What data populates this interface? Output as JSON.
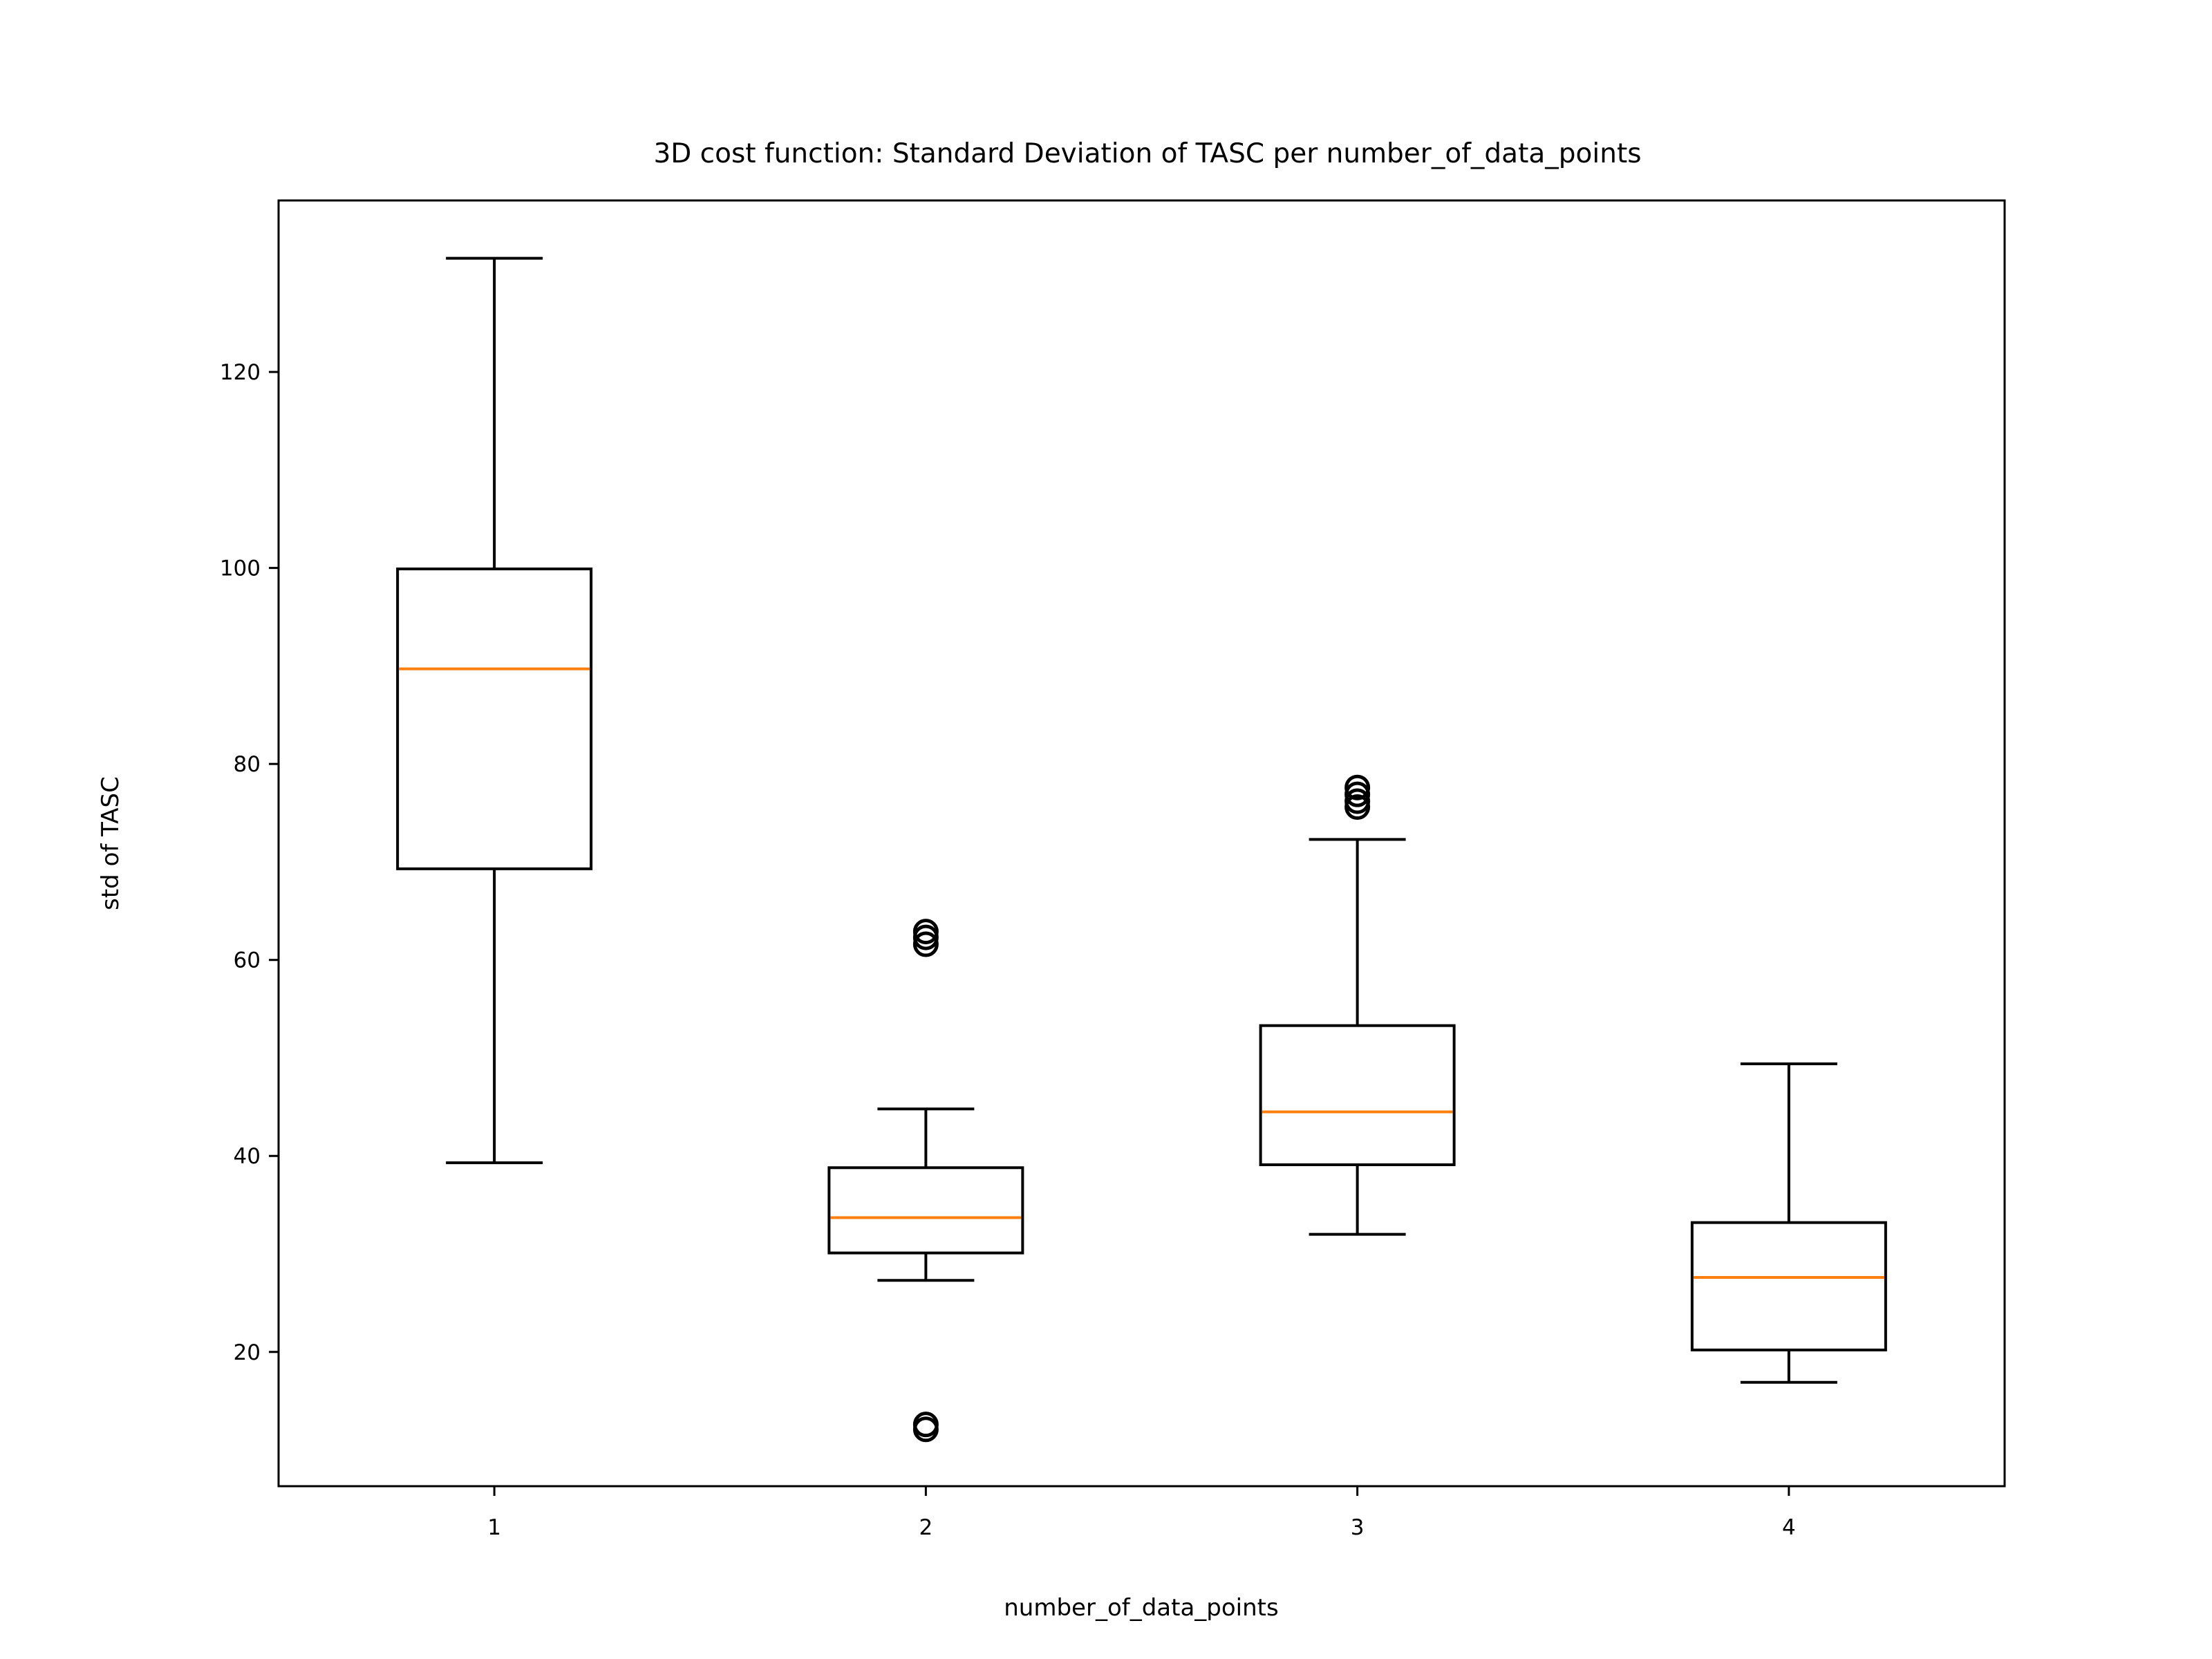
{
  "chart_data": {
    "type": "box",
    "title": "3D cost function: Standard Deviation of TASC per number_of_data_points",
    "xlabel": "number_of_data_points",
    "ylabel": "std of TASC",
    "categories": [
      "1",
      "2",
      "3",
      "4"
    ],
    "ylim": [
      6.3,
      137.5
    ],
    "yticks": [
      20,
      40,
      60,
      80,
      100,
      120
    ],
    "grid": false,
    "colors": {
      "box": "#000000",
      "median": "#ff7f0e"
    },
    "boxes": [
      {
        "category": "1",
        "whisker_low": 39.3,
        "q1": 69.3,
        "median": 89.7,
        "q3": 99.9,
        "whisker_high": 131.6,
        "outliers": []
      },
      {
        "category": "2",
        "whisker_low": 27.3,
        "q1": 30.1,
        "median": 33.7,
        "q3": 38.8,
        "whisker_high": 44.8,
        "outliers": [
          12.1,
          12.6,
          61.6,
          62.3,
          62.9
        ]
      },
      {
        "category": "3",
        "whisker_low": 32.0,
        "q1": 39.1,
        "median": 44.5,
        "q3": 53.3,
        "whisker_high": 72.3,
        "outliers": [
          75.6,
          76.2,
          76.9,
          77.6
        ]
      },
      {
        "category": "4",
        "whisker_low": 16.9,
        "q1": 20.2,
        "median": 27.6,
        "q3": 33.2,
        "whisker_high": 49.4,
        "outliers": []
      }
    ]
  }
}
